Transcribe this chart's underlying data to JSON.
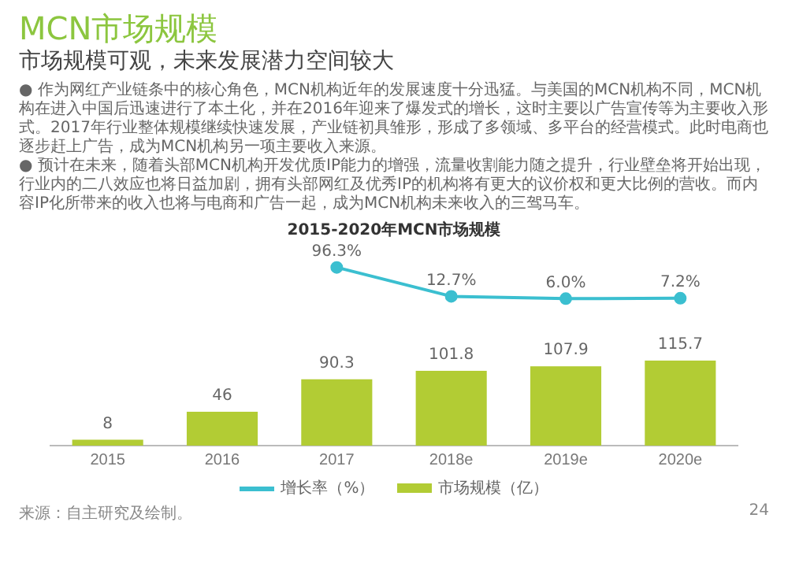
{
  "chart_data": [
    {
      "type": "line",
      "title": "MCN市场规模",
      "subtitle": "市场规模可观，未来发展潜力空间较大",
      "annotations": [
        "● 作为网红产业链条中的核心角色，MCN机构近年的发展速度十分迅猛。与美国的MCN机构不同，MCN机构在进入中国后迅速进行了本土化，并在2016年迎来了爆发式的增长，这时主要以广告宣传等为主要收入形式。2017年行业整体规模继续快速发展，产业链初具雏形，形成了多领域、多平台的经营模式。此时电商也逐步赶上广告，成为MCN机构另一项主要收入来源。",
        "● 预计在未来，随着头部MCN机构开发优质IP能力的增强，流量收割能力随之提升，行业壁垒将开始出现，行业内的二八效应也将日益加剧，拥有头部网红及优秀IP的机构将有更大的议价权和更大比例的营收。而内容IP化所带来的收入也将与电商和广告一起，成为MCN机构未来收入的三驾马车。",
        "2015-2020年MCN市场规模"
      ],
      "categories": [
        null,
        null,
        null,
        null,
        null,
        null
      ],
      "series": [
        {
          "name": "增长率（%）",
          "color": "#3bbfd0",
          "values": [
            null,
            null,
            96.3,
            12.7,
            6.0,
            7.2
          ],
          "value_labels": [
            null,
            null,
            "96.3%",
            "12.7%",
            "6.0%",
            "7.2%"
          ]
        }
      ],
      "marker": "circle",
      "tick_labels": false,
      "legend": "bottom"
    },
    {
      "type": "bar",
      "annotations": [
        "来源：自主研究及绘制。",
        "24"
      ],
      "categories": [
        "2015",
        "2016",
        "2017",
        "2018e",
        "2019e",
        "2020e"
      ],
      "series": [
        {
          "name": "市场规模（亿）",
          "color": "#b2cc34",
          "values": [
            8,
            46,
            90.3,
            101.8,
            107.9,
            115.7
          ]
        }
      ],
      "data_labels": true,
      "legend": "bottom",
      "tick_labels": "x"
    }
  ]
}
